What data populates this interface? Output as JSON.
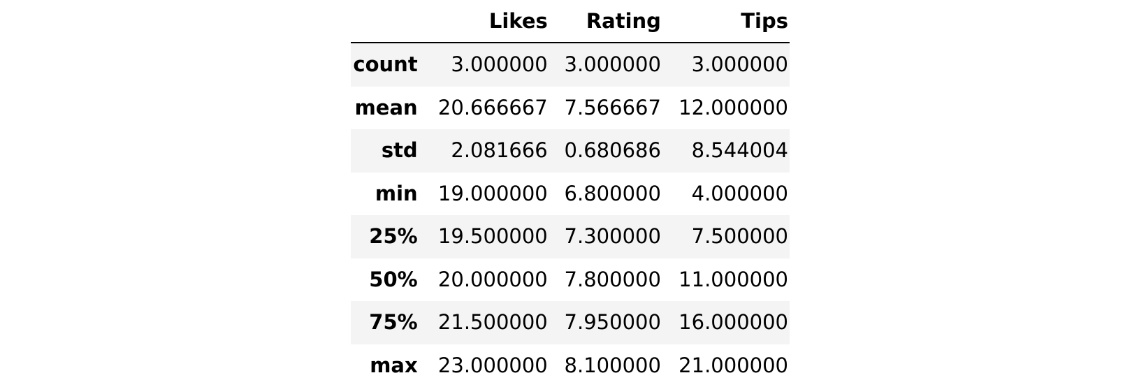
{
  "table": {
    "index_header": "",
    "columns": [
      "Likes",
      "Rating",
      "Tips"
    ],
    "rows": [
      {
        "label": "count",
        "values": [
          "3.000000",
          "3.000000",
          "3.000000"
        ]
      },
      {
        "label": "mean",
        "values": [
          "20.666667",
          "7.566667",
          "12.000000"
        ]
      },
      {
        "label": "std",
        "values": [
          "2.081666",
          "0.680686",
          "8.544004"
        ]
      },
      {
        "label": "min",
        "values": [
          "19.000000",
          "6.800000",
          "4.000000"
        ]
      },
      {
        "label": "25%",
        "values": [
          "19.500000",
          "7.300000",
          "7.500000"
        ]
      },
      {
        "label": "50%",
        "values": [
          "20.000000",
          "7.800000",
          "11.000000"
        ]
      },
      {
        "label": "75%",
        "values": [
          "21.500000",
          "7.950000",
          "16.000000"
        ]
      },
      {
        "label": "max",
        "values": [
          "23.000000",
          "8.100000",
          "21.000000"
        ]
      }
    ]
  }
}
